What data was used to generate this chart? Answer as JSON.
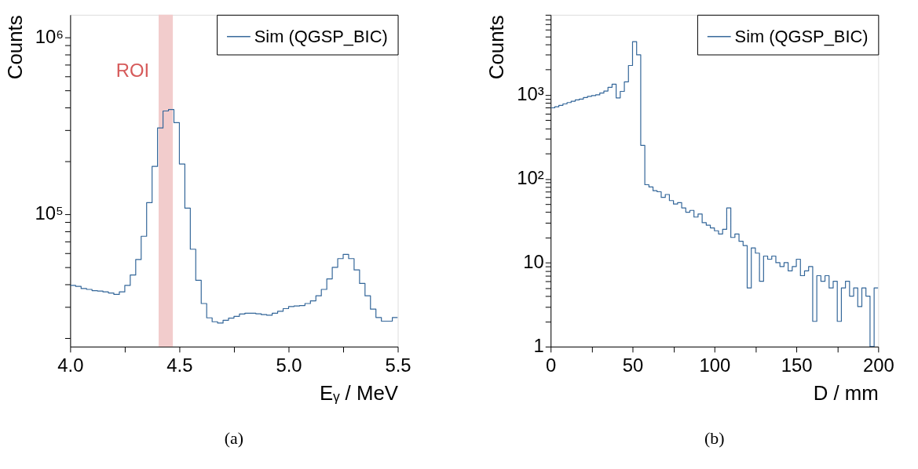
{
  "chart_data": [
    {
      "type": "histogram",
      "xlabel": "Eᵧ / MeV",
      "ylabel": "Counts",
      "log": "y",
      "grid": false,
      "legend": "top right",
      "bins": [
        4.0,
        4.025,
        4.05,
        4.075,
        4.1,
        4.125,
        4.15,
        4.175,
        4.2,
        4.225,
        4.25,
        4.275,
        4.3,
        4.325,
        4.35,
        4.375,
        4.4,
        4.425,
        4.45,
        4.475,
        4.5,
        4.525,
        4.55,
        4.575,
        4.6,
        4.625,
        4.65,
        4.675,
        4.7,
        4.725,
        4.75,
        4.775,
        4.8,
        4.825,
        4.85,
        4.875,
        4.9,
        4.925,
        4.95,
        4.975,
        5.0,
        5.025,
        5.05,
        5.075,
        5.1,
        5.125,
        5.15,
        5.175,
        5.2,
        5.225,
        5.25,
        5.275,
        5.3,
        5.325,
        5.35,
        5.375,
        5.4,
        5.425,
        5.45,
        5.475,
        5.5
      ],
      "series": [
        {
          "name": "Sim (QGSP_BIC)",
          "color": "#336699",
          "values": [
            39500,
            39000,
            37900,
            37500,
            36900,
            36700,
            36300,
            35800,
            35100,
            36300,
            39500,
            45200,
            55300,
            74900,
            116000,
            186000,
            307000,
            383000,
            390000,
            329000,
            192000,
            108000,
            63300,
            42200,
            31200,
            25900,
            24600,
            24200,
            25100,
            25800,
            26400,
            27200,
            27500,
            27500,
            27300,
            27000,
            26800,
            27500,
            28200,
            29200,
            30000,
            30200,
            30400,
            31200,
            32300,
            34500,
            37500,
            43000,
            50000,
            56000,
            59100,
            56000,
            48300,
            40500,
            34500,
            29000,
            26000,
            24800,
            24800,
            26000
          ]
        }
      ],
      "xlim": [
        4.0,
        5.5
      ],
      "xticks": [
        {
          "value": 4.0,
          "label": "4.0"
        },
        {
          "value": 4.25,
          "label": null
        },
        {
          "value": 4.5,
          "label": "4.5"
        },
        {
          "value": 4.75,
          "label": null
        },
        {
          "value": 5.0,
          "label": "5.0"
        },
        {
          "value": 5.25,
          "label": null
        },
        {
          "value": 5.5,
          "label": "5.5"
        }
      ],
      "ylim": [
        17800,
        1340000
      ],
      "yticks": [
        {
          "value": 20000,
          "label": null
        },
        {
          "value": 30000,
          "label": null
        },
        {
          "value": 40000,
          "label": null
        },
        {
          "value": 50000,
          "label": null
        },
        {
          "value": 60000,
          "label": null
        },
        {
          "value": 70000,
          "label": null
        },
        {
          "value": 80000,
          "label": null
        },
        {
          "value": 90000,
          "label": null
        },
        {
          "value": 100000,
          "label": "10⁵"
        },
        {
          "value": 200000,
          "label": null
        },
        {
          "value": 300000,
          "label": null
        },
        {
          "value": 400000,
          "label": null
        },
        {
          "value": 500000,
          "label": null
        },
        {
          "value": 600000,
          "label": null
        },
        {
          "value": 700000,
          "label": null
        },
        {
          "value": 800000,
          "label": null
        },
        {
          "value": 900000,
          "label": null
        },
        {
          "value": 1000000,
          "label": "10⁶"
        }
      ],
      "bands": [
        {
          "axis": "x",
          "from": 4.405,
          "to": 4.47,
          "label": "ROI",
          "color": "#f2cccc"
        }
      ],
      "annotations": [
        "(a)"
      ]
    },
    {
      "type": "histogram",
      "xlabel": "D / mm",
      "ylabel": "Counts",
      "log": "y",
      "grid": false,
      "legend": "top right",
      "bins": [
        0,
        2.5,
        5,
        7.5,
        10,
        12.5,
        15,
        17.5,
        20,
        22.5,
        25,
        27.5,
        30,
        32.5,
        35,
        37.5,
        40,
        42.5,
        45,
        47.5,
        50,
        52.5,
        55,
        57.5,
        60,
        62.5,
        65,
        67.5,
        70,
        72.5,
        75,
        77.5,
        80,
        82.5,
        85,
        87.5,
        90,
        92.5,
        95,
        97.5,
        100,
        102.5,
        105,
        107.5,
        110,
        112.5,
        115,
        117.5,
        120,
        122.5,
        125,
        127.5,
        130,
        132.5,
        135,
        137.5,
        140,
        142.5,
        145,
        147.5,
        150,
        152.5,
        155,
        157.5,
        160,
        162.5,
        165,
        167.5,
        170,
        172.5,
        175,
        177.5,
        180,
        182.5,
        185,
        187.5,
        190,
        192.5,
        195,
        197.5,
        200
      ],
      "series": [
        {
          "name": "Sim (QGSP_BIC)",
          "color": "#336699",
          "values": [
            700,
            720,
            750,
            780,
            810,
            840,
            870,
            890,
            930,
            960,
            980,
            1000,
            1050,
            1110,
            1230,
            1340,
            920,
            1100,
            1430,
            2240,
            4300,
            3000,
            250,
            85,
            80,
            72,
            70,
            60,
            65,
            55,
            50,
            52,
            45,
            40,
            42,
            35,
            38,
            30,
            28,
            26,
            24,
            22,
            25,
            45,
            20,
            22,
            18,
            16,
            5,
            15,
            13,
            6,
            12,
            11,
            12,
            10,
            9,
            10,
            8,
            9,
            11,
            7,
            8,
            9,
            2,
            7,
            6,
            7,
            5,
            6,
            2,
            5,
            6,
            4,
            5,
            3,
            5,
            4,
            1,
            5
          ]
        }
      ],
      "xlim": [
        0,
        200
      ],
      "xticks": [
        0,
        {
          "value": 25,
          "label": null
        },
        50,
        {
          "value": 75,
          "label": null
        },
        100,
        {
          "value": 125,
          "label": null
        },
        150,
        {
          "value": 175,
          "label": null
        },
        200
      ],
      "ylim": [
        1,
        9000
      ],
      "yticks": [
        1,
        {
          "value": 2,
          "label": null
        },
        {
          "value": 3,
          "label": null
        },
        {
          "value": 4,
          "label": null
        },
        {
          "value": 5,
          "label": null
        },
        {
          "value": 6,
          "label": null
        },
        {
          "value": 7,
          "label": null
        },
        {
          "value": 8,
          "label": null
        },
        {
          "value": 9,
          "label": null
        },
        10,
        {
          "value": 20,
          "label": null
        },
        {
          "value": 30,
          "label": null
        },
        {
          "value": 40,
          "label": null
        },
        {
          "value": 50,
          "label": null
        },
        {
          "value": 60,
          "label": null
        },
        {
          "value": 70,
          "label": null
        },
        {
          "value": 80,
          "label": null
        },
        {
          "value": 90,
          "label": null
        },
        {
          "value": 100,
          "label": "10²"
        },
        {
          "value": 200,
          "label": null
        },
        {
          "value": 300,
          "label": null
        },
        {
          "value": 400,
          "label": null
        },
        {
          "value": 500,
          "label": null
        },
        {
          "value": 600,
          "label": null
        },
        {
          "value": 700,
          "label": null
        },
        {
          "value": 800,
          "label": null
        },
        {
          "value": 900,
          "label": null
        },
        {
          "value": 1000,
          "label": "10³"
        },
        {
          "value": 2000,
          "label": null
        },
        {
          "value": 3000,
          "label": null
        },
        {
          "value": 4000,
          "label": null
        },
        {
          "value": 5000,
          "label": null
        },
        {
          "value": 6000,
          "label": null
        },
        {
          "value": 7000,
          "label": null
        },
        {
          "value": 8000,
          "label": null
        },
        {
          "value": 9000,
          "label": null
        }
      ],
      "annotations": [
        "(b)"
      ]
    }
  ]
}
